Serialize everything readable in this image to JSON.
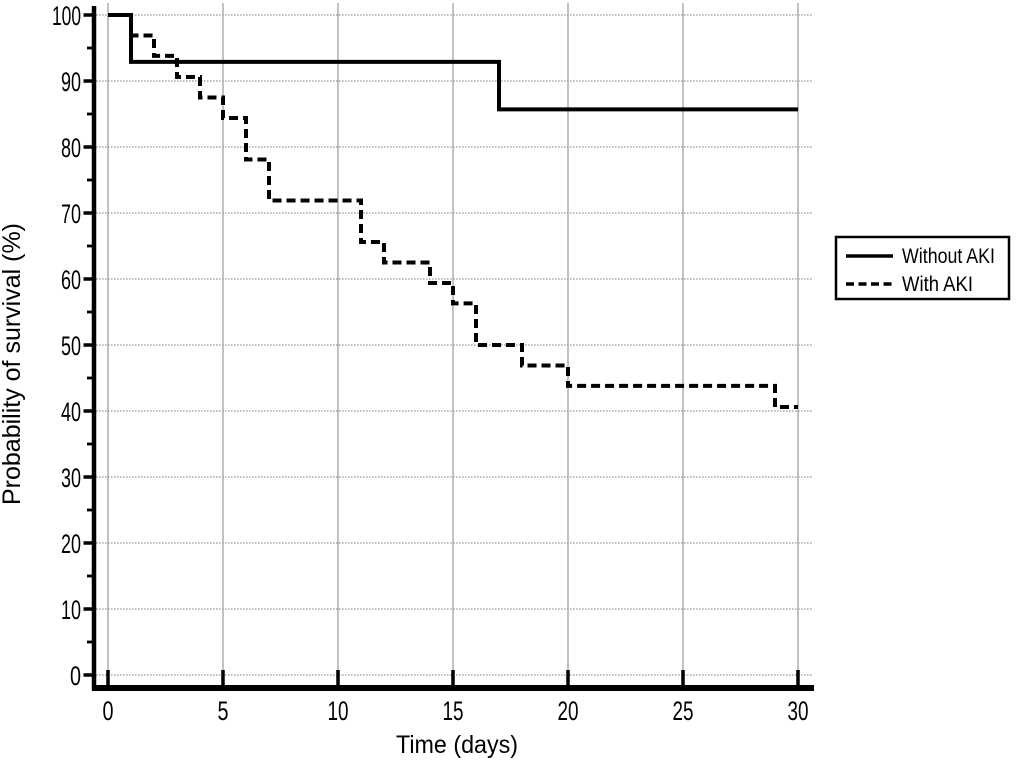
{
  "figure": {
    "background": "#ffffff",
    "curve_color": "#000000",
    "grid_color": "#999999",
    "axis_color": "#000000"
  },
  "chart_data": {
    "type": "line",
    "subtype": "kaplan_meier_step",
    "title": "",
    "xlabel": "Time (days)",
    "ylabel": "Probability of survival (%)",
    "xlim": [
      0,
      30
    ],
    "ylim": [
      0,
      100
    ],
    "x_ticks": [
      0,
      5,
      10,
      15,
      20,
      25,
      30
    ],
    "y_ticks": [
      100,
      90,
      80,
      70,
      60,
      50,
      40,
      30,
      20,
      10,
      0
    ],
    "y_minor_tick_step": 5,
    "grid": true,
    "legend_position": "right-outside",
    "series": [
      {
        "name": "Without AKI",
        "line_style": "solid",
        "color": "#000000",
        "steps": [
          [
            0,
            100
          ],
          [
            1,
            92.9
          ],
          [
            17,
            85.7
          ]
        ],
        "end_x": 30
      },
      {
        "name": "With AKI",
        "line_style": "dashed",
        "color": "#000000",
        "steps": [
          [
            0,
            100
          ],
          [
            1,
            96.9
          ],
          [
            2,
            93.8
          ],
          [
            3,
            90.6
          ],
          [
            4,
            87.5
          ],
          [
            5,
            84.4
          ],
          [
            6,
            78.1
          ],
          [
            7,
            71.9
          ],
          [
            11,
            65.6
          ],
          [
            12,
            62.5
          ],
          [
            14,
            59.4
          ],
          [
            15,
            56.3
          ],
          [
            16,
            50.0
          ],
          [
            18,
            46.9
          ],
          [
            20,
            43.8
          ],
          [
            29,
            40.6
          ]
        ],
        "end_x": 30
      }
    ]
  }
}
